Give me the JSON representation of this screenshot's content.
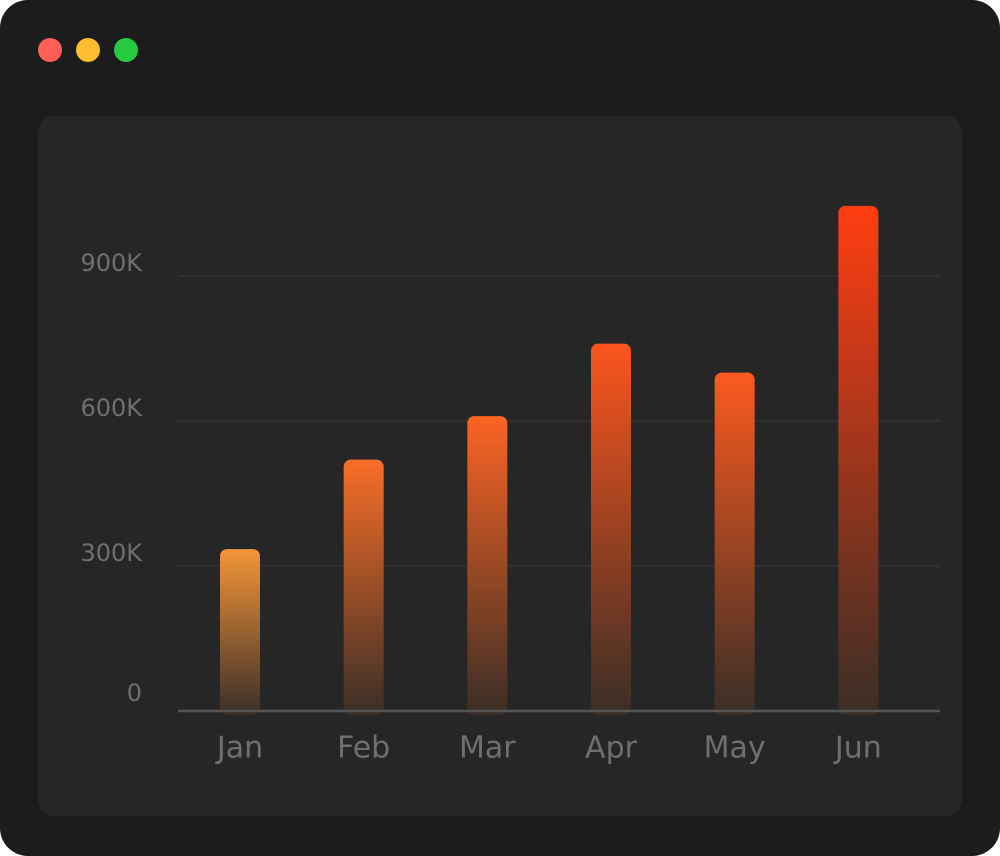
{
  "window": {
    "controls": [
      {
        "name": "close",
        "color": "#ff5f57"
      },
      {
        "name": "minimize",
        "color": "#febc2e"
      },
      {
        "name": "maximize",
        "color": "#28c840"
      }
    ]
  },
  "colors": {
    "window_bg": "#1c1c1c",
    "panel_bg": "#262626",
    "gridline": "#333333",
    "axis": "#555555",
    "label": "#6f6f6f",
    "bar_top_low": "#f5963a",
    "bar_top_high": "#ff3d12",
    "bar_bottom": "#3a2e26"
  },
  "chart_data": {
    "type": "bar",
    "title": "",
    "xlabel": "",
    "ylabel": "",
    "categories": [
      "Jan",
      "Feb",
      "Mar",
      "Apr",
      "May",
      "Jun"
    ],
    "values": [
      335000,
      520000,
      610000,
      760000,
      700000,
      1045000
    ],
    "ylim": [
      0,
      1100000
    ],
    "yticks": [
      0,
      300000,
      600000,
      900000
    ],
    "ytick_labels": [
      "0",
      "300K",
      "600K",
      "900K"
    ],
    "grid": true,
    "legend": "none"
  }
}
